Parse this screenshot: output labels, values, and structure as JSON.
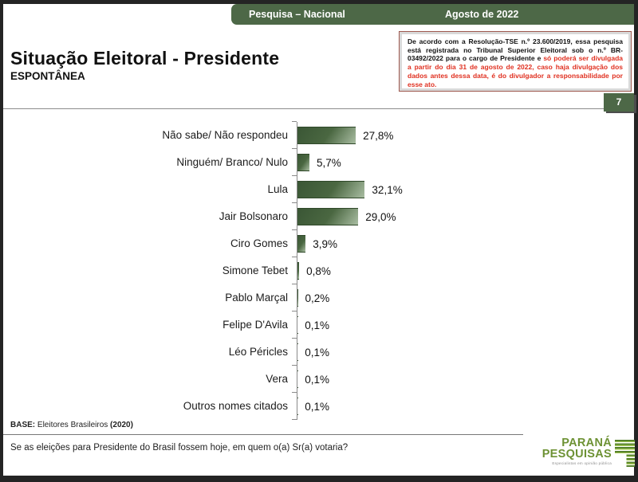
{
  "header": {
    "left": "Pesquisa – Nacional",
    "right": "Agosto de 2022",
    "bar_color": "#4d6847"
  },
  "disclaimer": {
    "black_text": "De acordo com a Resolução-TSE n.º 23.600/2019, essa pesquisa está registrada no Tribunal Superior Eleitoral sob o n.º BR-03492/2022 para o cargo de Presidente e ",
    "red_text": "só poderá ser divulgada a partir do dia 31 de agosto de 2022, caso haja divulgação dos dados antes dessa data, é do divulgador a responsabilidade por esse ato.",
    "red_color": "#e03020"
  },
  "title": {
    "main": "Situação Eleitoral - Presidente",
    "sub": "ESPONTÂNEA"
  },
  "page_number": "7",
  "chart_data": {
    "type": "bar",
    "orientation": "horizontal",
    "title": "Situação Eleitoral - Presidente (Espontânea)",
    "categories": [
      "Não sabe/ Não respondeu",
      "Ninguém/ Branco/ Nulo",
      "Lula",
      "Jair Bolsonaro",
      "Ciro Gomes",
      "Simone Tebet",
      "Pablo Marçal",
      "Felipe D'Avila",
      "Léo Péricles",
      "Vera",
      "Outros nomes citados"
    ],
    "values": [
      27.8,
      5.7,
      32.1,
      29.0,
      3.9,
      0.8,
      0.2,
      0.1,
      0.1,
      0.1,
      0.1
    ],
    "labels": [
      "27,8%",
      "5,7%",
      "32,1%",
      "29,0%",
      "3,9%",
      "0,8%",
      "0,2%",
      "0,1%",
      "0,1%",
      "0,1%",
      "0,1%"
    ],
    "xlim": [
      0,
      35
    ],
    "grid": false,
    "legend": "none",
    "bar_color": "#46633f",
    "bar_gradient_light": "#a9bda2",
    "axis_color": "#8a8a8a"
  },
  "footer": {
    "base_label": "BASE:",
    "base_text": " Eleitores Brasileiros ",
    "base_year": "(2020)",
    "question": "Se as eleições para Presidente do Brasil fossem hoje, em quem o(a) Sr(a) votaria?"
  },
  "logo": {
    "line1": "PARANÁ",
    "line2": "PESQUISAS",
    "tagline": "Especialistas em opinião pública",
    "color": "#6d9234"
  }
}
